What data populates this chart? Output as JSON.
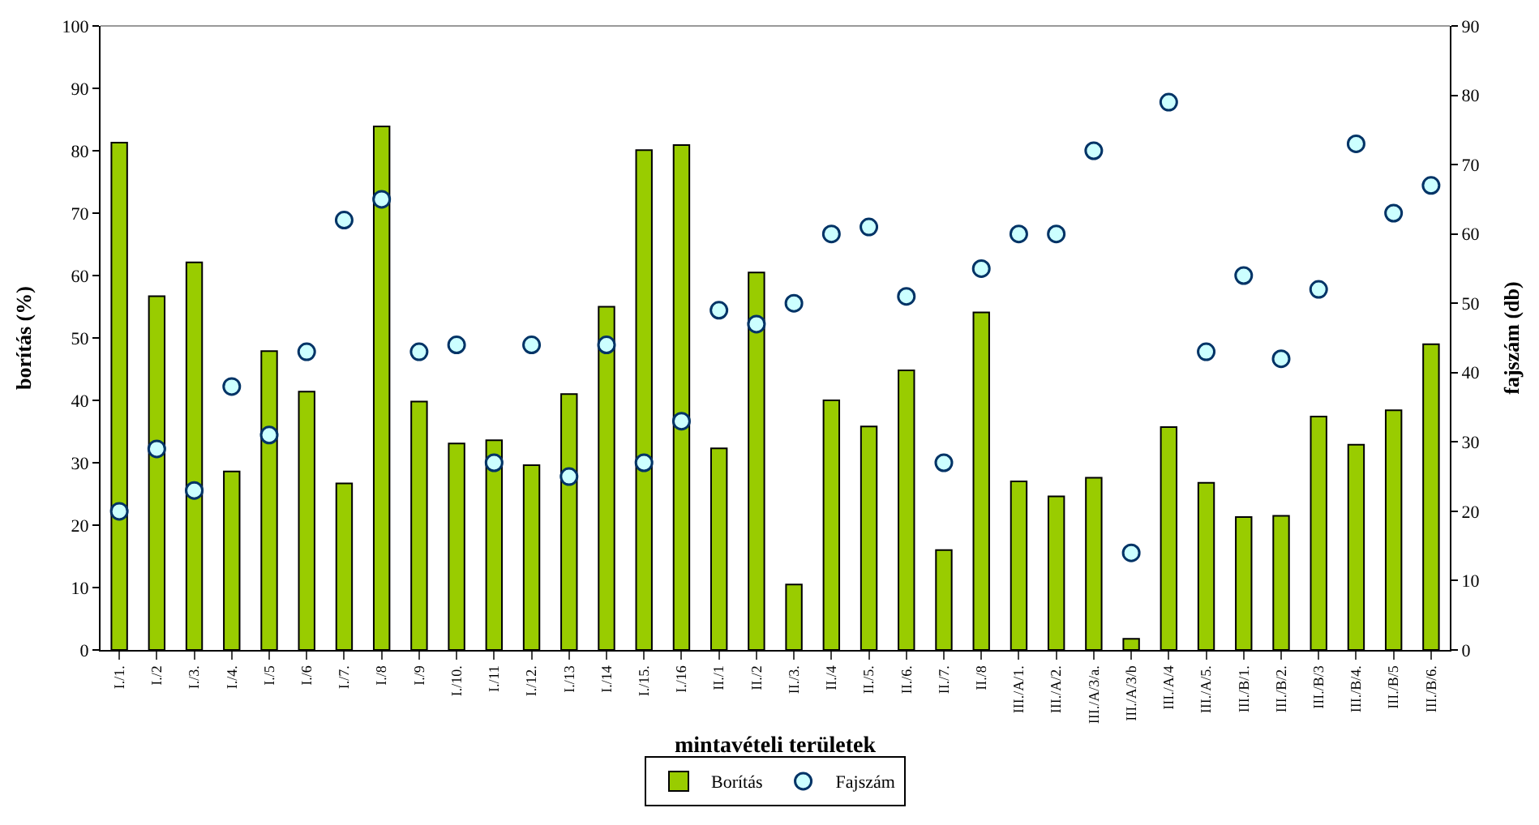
{
  "chart_data": {
    "type": "bar",
    "xlabel": "mintavételi területek",
    "ylabel": "borítás (%)",
    "y2label": "fajszám (db)",
    "categories": [
      "I./1.",
      "I./2",
      "I./3.",
      "I./4.",
      "I./5",
      "I./6",
      "I./7.",
      "I./8",
      "I./9",
      "I./10.",
      "I./11",
      "I./12.",
      "I./13",
      "I./14",
      "I./15.",
      "I./16",
      "II./1",
      "II./2",
      "II./3.",
      "II./4",
      "II./5.",
      "II./6.",
      "II./7.",
      "II./8",
      "III./A/1.",
      "III./A/2.",
      "III./A/3/a.",
      "III./A/3/b",
      "III./A/4",
      "III./A/5.",
      "III./B/1.",
      "III./B/2.",
      "III./B/3",
      "III./B/4.",
      "III./B/5",
      "III./B/6."
    ],
    "series": [
      {
        "name": "Borítás",
        "color": "#99cc00",
        "values": [
          81.3,
          56.7,
          62.1,
          28.6,
          47.9,
          41.4,
          26.7,
          83.9,
          39.8,
          33.1,
          33.6,
          29.6,
          41.0,
          55.0,
          80.1,
          80.9,
          32.3,
          60.5,
          10.5,
          40.0,
          35.8,
          44.8,
          16.0,
          54.1,
          27.0,
          24.6,
          27.6,
          1.8,
          35.7,
          26.8,
          21.3,
          21.5,
          37.4,
          32.9,
          38.4,
          49.0
        ]
      },
      {
        "name": "Fajszám",
        "type": "scatter",
        "axis": "y2",
        "color": "#ccffff",
        "marker": "circle",
        "values": [
          20,
          29,
          23,
          38,
          31,
          43,
          62,
          65,
          43,
          44,
          27,
          44,
          25,
          44,
          27,
          33,
          49,
          47,
          50,
          60,
          61,
          51,
          27,
          55,
          60,
          60,
          72,
          14,
          79,
          43,
          54,
          42,
          52,
          73,
          63,
          67
        ]
      }
    ],
    "ylim": [
      0,
      100
    ],
    "yticks": [
      0,
      10,
      20,
      30,
      40,
      50,
      60,
      70,
      80,
      90,
      100
    ],
    "y2lim": [
      0,
      90
    ],
    "y2ticks": [
      0,
      10,
      20,
      30,
      40,
      50,
      60,
      70,
      80,
      90
    ],
    "legend": "bottom"
  }
}
